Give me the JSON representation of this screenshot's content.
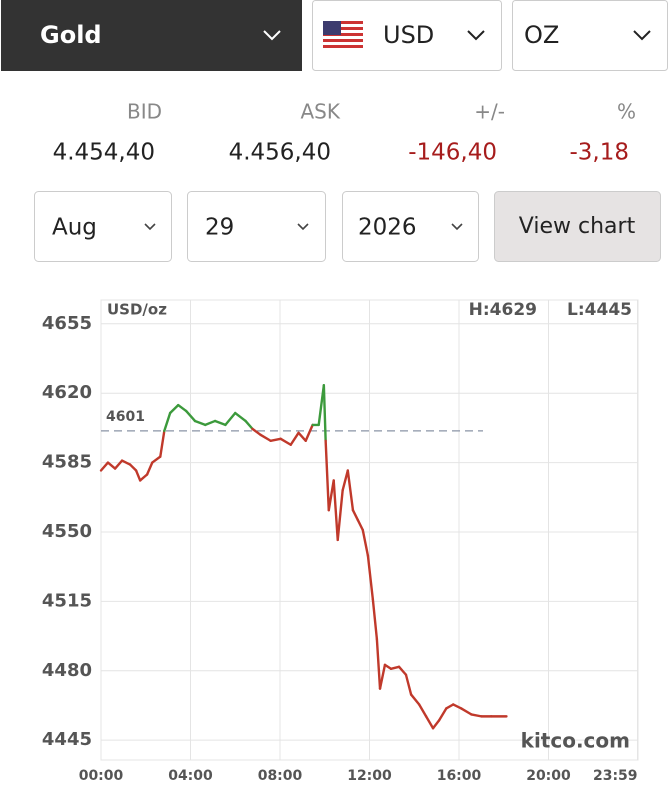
{
  "selectors": {
    "metal": "Gold",
    "currency": "USD",
    "unit": "OZ"
  },
  "quote": {
    "headers": [
      "BID",
      "ASK",
      "+/-",
      "%"
    ],
    "values": [
      "4.454,40",
      "4.456,40",
      "-146,40",
      "-3,18"
    ]
  },
  "date": {
    "month": "Aug",
    "day": "29",
    "year": "2026",
    "button": "View chart"
  },
  "chart_data": {
    "type": "line",
    "y_label": "USD/oz",
    "high": "H:4629",
    "low": "L:4445",
    "watermark": "kitco.com",
    "reference": 4601,
    "above_color": "#3c9a3c",
    "below_color": "#c0392b",
    "grid": true,
    "x": [
      0,
      0.31,
      0.63,
      0.94,
      1.3,
      1.57,
      1.75,
      2.06,
      2.29,
      2.65,
      2.83,
      3.09,
      3.45,
      3.81,
      4.2,
      4.66,
      5.1,
      5.56,
      6.0,
      6.46,
      6.77,
      7.13,
      7.58,
      8.03,
      8.48,
      8.83,
      9.15,
      9.46,
      9.73,
      9.96,
      10.04,
      10.18,
      10.4,
      10.58,
      10.8,
      11.03,
      11.26,
      11.48,
      11.7,
      11.93,
      12.15,
      12.33,
      12.47,
      12.69,
      12.96,
      13.32,
      13.63,
      13.86,
      14.22,
      14.53,
      14.84,
      15.11,
      15.43,
      15.74,
      16.1,
      16.55,
      17.0,
      17.44,
      18.12
    ],
    "series": [
      {
        "values": [
          4581,
          4585,
          4582,
          4586,
          4584,
          4581,
          4576,
          4579,
          4585,
          4588,
          4601,
          4610,
          4614,
          4611,
          4606,
          4604,
          4606,
          4604,
          4610,
          4606,
          4602,
          4599,
          4596,
          4597,
          4594,
          4600,
          4596,
          4604,
          4604,
          4624,
          4596,
          4561,
          4576,
          4546,
          4571,
          4581,
          4561,
          4556,
          4551,
          4538,
          4516,
          4496,
          4471,
          4483,
          4481,
          4482,
          4478,
          4468,
          4463,
          4457,
          4451,
          4455,
          4461,
          4463,
          4461,
          4458,
          4457,
          4457,
          4457
        ]
      }
    ],
    "xlim": [
      0,
      24
    ],
    "ylim": [
      4435,
      4667
    ],
    "xticks": [
      {
        "value": 0,
        "label": "00:00"
      },
      {
        "value": 4,
        "label": "04:00"
      },
      {
        "value": 8,
        "label": "08:00"
      },
      {
        "value": 12,
        "label": "12:00"
      },
      {
        "value": 16,
        "label": "16:00"
      },
      {
        "value": 20,
        "label": "20:00"
      },
      {
        "value": 23.98,
        "label": "23:59"
      }
    ],
    "yticks": [
      4445,
      4480,
      4515,
      4550,
      4585,
      4620,
      4655
    ]
  }
}
